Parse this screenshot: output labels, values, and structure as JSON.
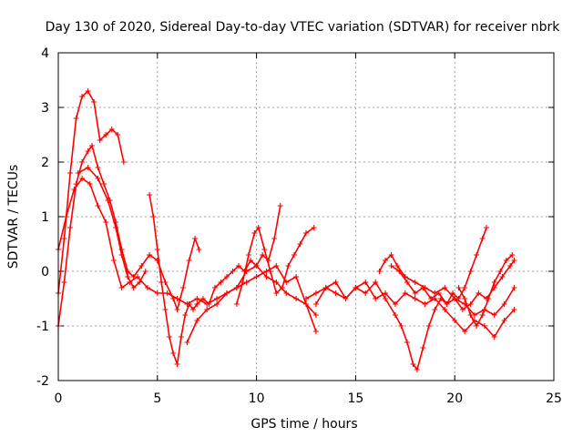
{
  "chart_data": {
    "type": "scatter",
    "title": "Day 130 of 2020, Sidereal Day-to-day VTEC variation (SDTVAR) for receiver nbrk",
    "xlabel": "GPS time / hours",
    "ylabel": "SDTVAR / TECUs",
    "xlim": [
      0,
      25
    ],
    "ylim": [
      -2,
      4
    ],
    "xticks": [
      "0",
      "5",
      "10",
      "15",
      "20",
      "25"
    ],
    "yticks": [
      "-2",
      "-1",
      "0",
      "1",
      "2",
      "3",
      "4"
    ],
    "grid": true,
    "marker": "+",
    "color": "#ff0000",
    "series": [
      {
        "name": "track-1",
        "x": [
          0.0,
          0.3,
          0.6,
          0.9,
          1.2,
          1.5,
          1.8,
          2.1,
          2.4,
          2.7,
          3.0,
          3.3
        ],
        "y": [
          -0.4,
          0.6,
          1.8,
          2.8,
          3.2,
          3.3,
          3.1,
          2.4,
          2.5,
          2.6,
          2.5,
          2.0
        ]
      },
      {
        "name": "track-2",
        "x": [
          0.0,
          0.3,
          0.6,
          0.9,
          1.2,
          1.5,
          1.7,
          2.0,
          2.3,
          2.6,
          2.9,
          3.2,
          3.5,
          3.8,
          4.2,
          4.6,
          5.0,
          5.4,
          5.8,
          6.0,
          6.3,
          6.6,
          6.9,
          7.1
        ],
        "y": [
          -1.0,
          -0.2,
          0.8,
          1.6,
          2.0,
          2.2,
          2.3,
          1.9,
          1.6,
          1.3,
          0.9,
          0.4,
          0.0,
          -0.1,
          0.1,
          0.3,
          0.2,
          -0.2,
          -0.5,
          -0.7,
          -0.3,
          0.2,
          0.6,
          0.4
        ]
      },
      {
        "name": "track-3",
        "x": [
          0.0,
          0.4,
          0.8,
          1.2,
          1.6,
          2.0,
          2.4,
          2.8,
          3.2,
          3.6,
          4.0,
          4.5,
          5.0,
          5.5,
          6.0,
          6.5,
          7.0,
          7.5,
          8.0,
          8.5,
          9.0,
          9.5,
          10.0,
          10.5,
          11.0,
          11.5,
          12.0,
          12.5,
          13.0
        ],
        "y": [
          0.4,
          1.0,
          1.5,
          1.7,
          1.6,
          1.2,
          0.9,
          0.2,
          -0.3,
          -0.2,
          -0.1,
          -0.3,
          -0.4,
          -0.4,
          -0.5,
          -0.6,
          -0.5,
          -0.6,
          -0.5,
          -0.4,
          -0.3,
          0.0,
          0.1,
          -0.1,
          -0.2,
          -0.4,
          -0.5,
          -0.6,
          -0.8
        ]
      },
      {
        "name": "track-4",
        "x": [
          1.0,
          1.5,
          2.0,
          2.5,
          2.9,
          3.2,
          3.5,
          3.8,
          4.1,
          4.4
        ],
        "y": [
          1.8,
          1.9,
          1.7,
          1.3,
          0.8,
          0.3,
          -0.1,
          -0.3,
          -0.2,
          0.0
        ]
      },
      {
        "name": "track-5",
        "x": [
          4.6,
          4.8,
          5.0,
          5.2,
          5.4,
          5.6,
          5.8,
          6.0,
          6.2,
          6.4,
          6.6,
          6.8,
          7.0,
          7.3,
          7.6,
          7.9,
          8.2,
          8.5,
          8.8,
          9.1,
          9.4,
          9.7,
          10.0,
          10.3,
          10.6,
          10.9,
          11.2
        ],
        "y": [
          1.4,
          1.0,
          0.4,
          -0.2,
          -0.7,
          -1.2,
          -1.5,
          -1.7,
          -1.2,
          -0.8,
          -0.6,
          -0.7,
          -0.6,
          -0.5,
          -0.6,
          -0.3,
          -0.2,
          -0.1,
          0.0,
          0.1,
          0.0,
          0.2,
          0.1,
          0.3,
          0.2,
          0.6,
          1.2
        ]
      },
      {
        "name": "track-6",
        "x": [
          6.5,
          7.0,
          7.5,
          8.0,
          8.5,
          9.0,
          9.5,
          10.0,
          10.5,
          11.0,
          11.5,
          12.0,
          12.5,
          13.0
        ],
        "y": [
          -1.3,
          -0.9,
          -0.7,
          -0.6,
          -0.4,
          -0.3,
          -0.2,
          -0.1,
          0.0,
          0.1,
          -0.2,
          -0.1,
          -0.6,
          -1.1
        ]
      },
      {
        "name": "track-7",
        "x": [
          9.0,
          9.3,
          9.6,
          9.9,
          10.1,
          10.4,
          10.7,
          11.0,
          11.3,
          11.6,
          11.9,
          12.2,
          12.5,
          12.9
        ],
        "y": [
          -0.6,
          -0.2,
          0.3,
          0.7,
          0.8,
          0.4,
          0.0,
          -0.4,
          -0.3,
          0.1,
          0.3,
          0.5,
          0.7,
          0.8
        ]
      },
      {
        "name": "track-8",
        "x": [
          12.5,
          13.0,
          13.5,
          14.0,
          14.5,
          15.0,
          15.5,
          16.0,
          16.5,
          17.0,
          17.3,
          17.6,
          17.9,
          18.1,
          18.4,
          18.7,
          19.0,
          19.3,
          19.6,
          19.9,
          20.2,
          20.5,
          20.8,
          21.1,
          21.4,
          21.6
        ],
        "y": [
          -0.5,
          -0.4,
          -0.3,
          -0.4,
          -0.5,
          -0.3,
          -0.4,
          -0.2,
          -0.5,
          -0.8,
          -1.0,
          -1.3,
          -1.7,
          -1.8,
          -1.4,
          -1.0,
          -0.7,
          -0.5,
          -0.6,
          -0.4,
          -0.5,
          -0.3,
          0.0,
          0.3,
          0.6,
          0.8
        ]
      },
      {
        "name": "track-9",
        "x": [
          13.0,
          13.5,
          14.0,
          14.5,
          15.0,
          15.5,
          16.0,
          16.5,
          17.0,
          17.5,
          18.0,
          18.5,
          19.0,
          19.5,
          20.0,
          20.5,
          21.0,
          21.5,
          22.0,
          22.5,
          23.0
        ],
        "y": [
          -0.6,
          -0.3,
          -0.2,
          -0.5,
          -0.3,
          -0.2,
          -0.5,
          -0.4,
          -0.6,
          -0.4,
          -0.5,
          -0.6,
          -0.5,
          -0.7,
          -0.9,
          -1.1,
          -0.9,
          -1.0,
          -1.2,
          -0.9,
          -0.7
        ]
      },
      {
        "name": "track-10",
        "x": [
          16.2,
          16.5,
          16.8,
          17.1,
          17.5,
          18.0,
          18.5,
          19.0,
          19.5,
          20.0,
          20.5,
          21.0,
          21.5,
          22.0,
          22.5,
          23.0
        ],
        "y": [
          0.0,
          0.2,
          0.3,
          0.1,
          -0.1,
          -0.2,
          -0.3,
          -0.4,
          -0.3,
          -0.5,
          -0.6,
          -0.8,
          -0.7,
          -0.8,
          -0.6,
          -0.3
        ]
      },
      {
        "name": "track-11",
        "x": [
          16.8,
          17.2,
          17.6,
          18.0,
          18.4,
          18.8,
          19.2,
          19.6,
          20.0,
          20.4,
          20.8,
          21.2,
          21.6,
          22.0,
          22.4,
          22.8,
          23.0
        ],
        "y": [
          0.1,
          0.0,
          -0.2,
          -0.4,
          -0.3,
          -0.5,
          -0.4,
          -0.6,
          -0.5,
          -0.7,
          -0.6,
          -0.4,
          -0.5,
          -0.3,
          -0.1,
          0.1,
          0.2
        ]
      },
      {
        "name": "track-12",
        "x": [
          20.2,
          20.5,
          20.8,
          21.1,
          21.4,
          21.7,
          22.0,
          22.3,
          22.6,
          22.9
        ],
        "y": [
          -0.3,
          -0.5,
          -0.8,
          -1.0,
          -0.8,
          -0.5,
          -0.2,
          0.0,
          0.2,
          0.3
        ]
      }
    ]
  }
}
